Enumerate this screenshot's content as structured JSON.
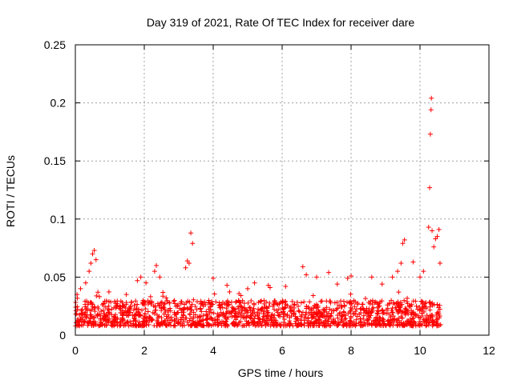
{
  "chart_data": {
    "type": "scatter",
    "title": "Day 319 of 2021, Rate Of TEC Index for receiver dare",
    "xlabel": "GPS time / hours",
    "ylabel": "ROTI / TECUs",
    "xlim": [
      0,
      12
    ],
    "ylim": [
      0,
      0.25
    ],
    "xticks": [
      0,
      2,
      4,
      6,
      8,
      10,
      12
    ],
    "xtick_labels": [
      "0",
      "2",
      "4",
      "6",
      "8",
      "10",
      "12"
    ],
    "yticks": [
      0,
      0.05,
      0.1,
      0.15,
      0.2,
      0.25
    ],
    "ytick_labels": [
      "0",
      "0.05",
      "0.1",
      "0.15",
      "0.2",
      "0.25"
    ],
    "grid": true,
    "marker": "+",
    "color": "#ff0000",
    "x_range_of_data": [
      0,
      10.6
    ],
    "baseline_band": [
      0.008,
      0.03
    ],
    "series": [
      {
        "name": "ROTI",
        "points": [
          {
            "x": 0.05,
            "y": 0.035
          },
          {
            "x": 0.15,
            "y": 0.04
          },
          {
            "x": 0.3,
            "y": 0.045
          },
          {
            "x": 0.4,
            "y": 0.055
          },
          {
            "x": 0.45,
            "y": 0.062
          },
          {
            "x": 0.5,
            "y": 0.07
          },
          {
            "x": 0.55,
            "y": 0.073
          },
          {
            "x": 0.6,
            "y": 0.065
          },
          {
            "x": 1.8,
            "y": 0.047
          },
          {
            "x": 1.9,
            "y": 0.05
          },
          {
            "x": 2.05,
            "y": 0.045
          },
          {
            "x": 2.3,
            "y": 0.055
          },
          {
            "x": 2.35,
            "y": 0.06
          },
          {
            "x": 2.45,
            "y": 0.05
          },
          {
            "x": 3.2,
            "y": 0.058
          },
          {
            "x": 3.25,
            "y": 0.064
          },
          {
            "x": 3.3,
            "y": 0.062
          },
          {
            "x": 3.35,
            "y": 0.088
          },
          {
            "x": 3.4,
            "y": 0.079
          },
          {
            "x": 4.0,
            "y": 0.049
          },
          {
            "x": 4.4,
            "y": 0.043
          },
          {
            "x": 5.0,
            "y": 0.04
          },
          {
            "x": 5.2,
            "y": 0.045
          },
          {
            "x": 5.6,
            "y": 0.043
          },
          {
            "x": 5.65,
            "y": 0.041
          },
          {
            "x": 6.1,
            "y": 0.042
          },
          {
            "x": 6.6,
            "y": 0.059
          },
          {
            "x": 6.7,
            "y": 0.052
          },
          {
            "x": 7.0,
            "y": 0.05
          },
          {
            "x": 7.35,
            "y": 0.054
          },
          {
            "x": 7.6,
            "y": 0.044
          },
          {
            "x": 7.9,
            "y": 0.049
          },
          {
            "x": 8.0,
            "y": 0.051
          },
          {
            "x": 8.6,
            "y": 0.05
          },
          {
            "x": 8.9,
            "y": 0.044
          },
          {
            "x": 9.2,
            "y": 0.05
          },
          {
            "x": 9.35,
            "y": 0.055
          },
          {
            "x": 9.45,
            "y": 0.062
          },
          {
            "x": 9.5,
            "y": 0.079
          },
          {
            "x": 9.55,
            "y": 0.082
          },
          {
            "x": 9.8,
            "y": 0.063
          },
          {
            "x": 10.0,
            "y": 0.05
          },
          {
            "x": 10.1,
            "y": 0.055
          },
          {
            "x": 10.25,
            "y": 0.093
          },
          {
            "x": 10.28,
            "y": 0.127
          },
          {
            "x": 10.3,
            "y": 0.173
          },
          {
            "x": 10.32,
            "y": 0.194
          },
          {
            "x": 10.33,
            "y": 0.204
          },
          {
            "x": 10.35,
            "y": 0.09
          },
          {
            "x": 10.4,
            "y": 0.076
          },
          {
            "x": 10.45,
            "y": 0.083
          },
          {
            "x": 10.5,
            "y": 0.085
          },
          {
            "x": 10.55,
            "y": 0.091
          },
          {
            "x": 10.58,
            "y": 0.062
          }
        ]
      }
    ]
  }
}
